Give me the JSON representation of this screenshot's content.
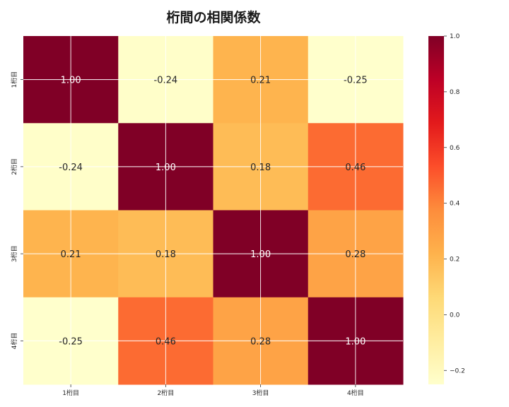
{
  "chart_data": {
    "type": "heatmap",
    "title": "桁間の相関係数",
    "xlabel": "",
    "ylabel": "",
    "x_categories": [
      "1桁目",
      "2桁目",
      "3桁目",
      "4桁目"
    ],
    "y_categories": [
      "1桁目",
      "2桁目",
      "3桁目",
      "4桁目"
    ],
    "values": [
      [
        1.0,
        -0.24,
        0.21,
        -0.25
      ],
      [
        -0.24,
        1.0,
        0.18,
        0.46
      ],
      [
        0.21,
        0.18,
        1.0,
        0.28
      ],
      [
        -0.25,
        0.46,
        0.28,
        1.0
      ]
    ],
    "value_labels": [
      [
        "1.00",
        "-0.24",
        "0.21",
        "-0.25"
      ],
      [
        "-0.24",
        "1.00",
        "0.18",
        "0.46"
      ],
      [
        "0.21",
        "0.18",
        "1.00",
        "0.28"
      ],
      [
        "-0.25",
        "0.46",
        "0.28",
        "1.00"
      ]
    ],
    "colorbar": {
      "vmin": -0.25,
      "vmax": 1.0,
      "ticks": [
        -0.2,
        0.0,
        0.2,
        0.4,
        0.6,
        0.8,
        1.0
      ],
      "tick_labels": [
        "−0.2",
        "0.0",
        "0.2",
        "0.4",
        "0.6",
        "0.8",
        "1.0"
      ],
      "colormap": "YlOrRd",
      "colormap_stops": [
        "#ffffcc",
        "#ffeda0",
        "#fed976",
        "#feb24c",
        "#fd8d3c",
        "#fc4e2a",
        "#e31a1c",
        "#bd0026",
        "#800026"
      ]
    },
    "grid": true,
    "annotations": true
  }
}
